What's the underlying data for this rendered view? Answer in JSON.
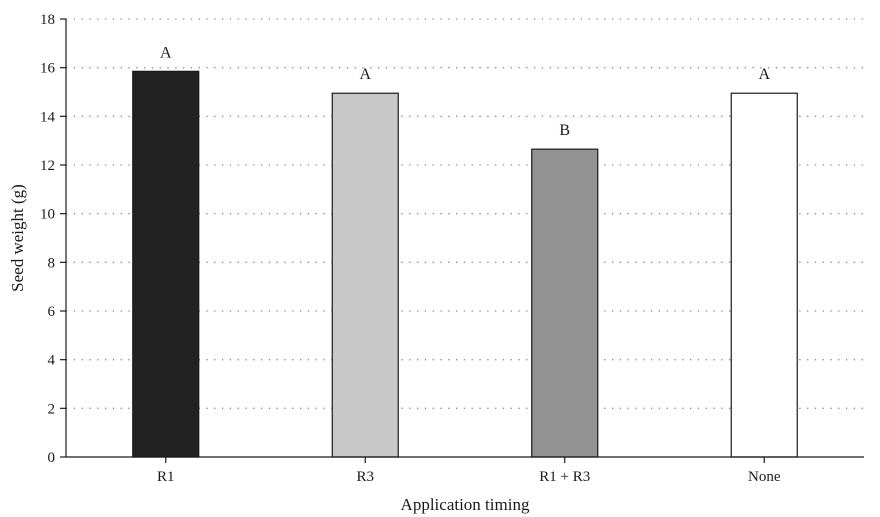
{
  "chart_data": {
    "type": "bar",
    "xlabel": "Application timing",
    "ylabel": "Seed weight (g)",
    "categories": [
      "R1",
      "R3",
      "R1 + R3",
      "None"
    ],
    "values": [
      15.85,
      14.95,
      12.65,
      14.95
    ],
    "significance_letters": [
      "A",
      "A",
      "B",
      "A"
    ],
    "bar_colors": [
      "#222222",
      "#c8c8c8",
      "#939393",
      "#ffffff"
    ],
    "ylim": [
      0,
      18
    ],
    "yticks": [
      0,
      2,
      4,
      6,
      8,
      10,
      12,
      14,
      16,
      18
    ],
    "grid": "horizontal dotted",
    "legend": "none"
  }
}
